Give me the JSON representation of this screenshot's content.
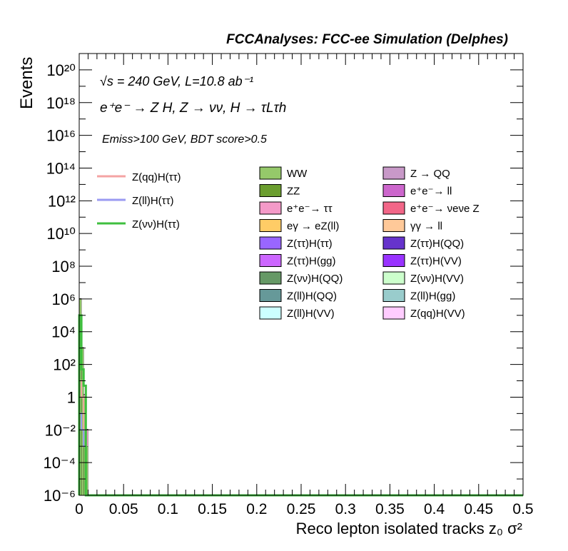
{
  "header": {
    "title": "FCCAnalyses: FCC-ee Simulation (Delphes)"
  },
  "annotations": {
    "line1": "√s = 240 GeV, L=10.8 ab⁻¹",
    "line2": "e⁺e⁻ → Z H, Z → νν, H → τLτh",
    "line3": "Emiss>100 GeV, BDT score>0.5"
  },
  "colors": {
    "Z(qq)H(ττ)": "#f4a3a3",
    "Z(ll)H(ττ)": "#9a9af2",
    "Z(νν)H(ττ)": "#3fbf3f",
    "WW": "#95c96a",
    "Z → QQ": "#c899c8",
    "ZZ": "#6b9e2f",
    "e⁺e⁻→ ll": "#cc66cc",
    "e⁺e⁻→ ττ": "#f49ac8",
    "e⁺e⁻→ νeνe Z": "#f26688",
    "eγ → eZ(ll)": "#ffcc66",
    "γγ → ll": "#ffc999",
    "Z(ττ)H(ττ)": "#9966ff",
    "Z(ττ)H(QQ)": "#6633cc",
    "Z(ττ)H(gg)": "#cc66ff",
    "Z(ττ)H(VV)": "#9933ff",
    "Z(νν)H(QQ)": "#669966",
    "Z(νν)H(VV)": "#ccffcc",
    "Z(ll)H(QQ)": "#669999",
    "Z(ll)H(gg)": "#99cccc",
    "Z(ll)H(VV)": "#ccffff",
    "Z(qq)H(VV)": "#ffccff"
  },
  "chart_data": {
    "type": "bar",
    "title": "FCCAnalyses: FCC-ee Simulation (Delphes)",
    "xlabel": "Reco lepton isolated tracks z₀ σ²",
    "ylabel": "Events",
    "xlim": [
      0,
      0.5
    ],
    "ylim": [
      1e-06,
      1e+21
    ],
    "yscale": "log",
    "x_ticks": [
      "0",
      "0.05",
      "0.1",
      "0.15",
      "0.2",
      "0.25",
      "0.3",
      "0.35",
      "0.4",
      "0.45",
      "0.5"
    ],
    "y_ticks": [
      "10⁻⁶",
      "10⁻⁴",
      "10⁻²",
      "1",
      "10²",
      "10⁴",
      "10⁶",
      "10⁸",
      "10¹⁰",
      "10¹²",
      "10¹⁴",
      "10¹⁶",
      "10¹⁸",
      "10²⁰"
    ],
    "bin_edges": [
      0,
      0.0025,
      0.005,
      0.0075,
      0.01
    ],
    "stack": [
      {
        "name": "WW",
        "values": [
          1000000,
          1000,
          1,
          0.001
        ]
      },
      {
        "name": "e⁺e⁻→ ττ",
        "values": [
          50000,
          100,
          0.5,
          0.01
        ]
      },
      {
        "name": "Z(ττ)H(gg)",
        "values": [
          100,
          10,
          0.01,
          1e-06
        ]
      },
      {
        "name": "Z(ττ)H(ττ)",
        "values": [
          10,
          1,
          0.001,
          1e-06
        ]
      },
      {
        "name": "Z(ll)H(VV)",
        "values": [
          0.001,
          0.0001,
          1e-05,
          1e-06
        ]
      }
    ],
    "signal_lines": [
      {
        "name": "Z(qq)H(ττ)",
        "values": [
          10,
          1,
          0.01,
          1e-06
        ]
      },
      {
        "name": "Z(ll)H(ττ)",
        "values": [
          0.1,
          0.01,
          0.001,
          1e-06
        ]
      },
      {
        "name": "Z(νν)H(ττ)",
        "values": [
          100000,
          50,
          5,
          1e-06
        ]
      }
    ],
    "legend_lines": [
      "Z(qq)H(ττ)",
      "Z(ll)H(ττ)",
      "Z(νν)H(ττ)"
    ],
    "legend_fills": [
      "WW",
      "Z → QQ",
      "ZZ",
      "e⁺e⁻→ ll",
      "e⁺e⁻→ ττ",
      "e⁺e⁻→ νeνe Z",
      "eγ → eZ(ll)",
      "γγ → ll",
      "Z(ττ)H(ττ)",
      "Z(ττ)H(QQ)",
      "Z(ττ)H(gg)",
      "Z(ττ)H(VV)",
      "Z(νν)H(QQ)",
      "Z(νν)H(VV)",
      "Z(ll)H(QQ)",
      "Z(ll)H(gg)",
      "Z(ll)H(VV)",
      "Z(qq)H(VV)"
    ]
  }
}
